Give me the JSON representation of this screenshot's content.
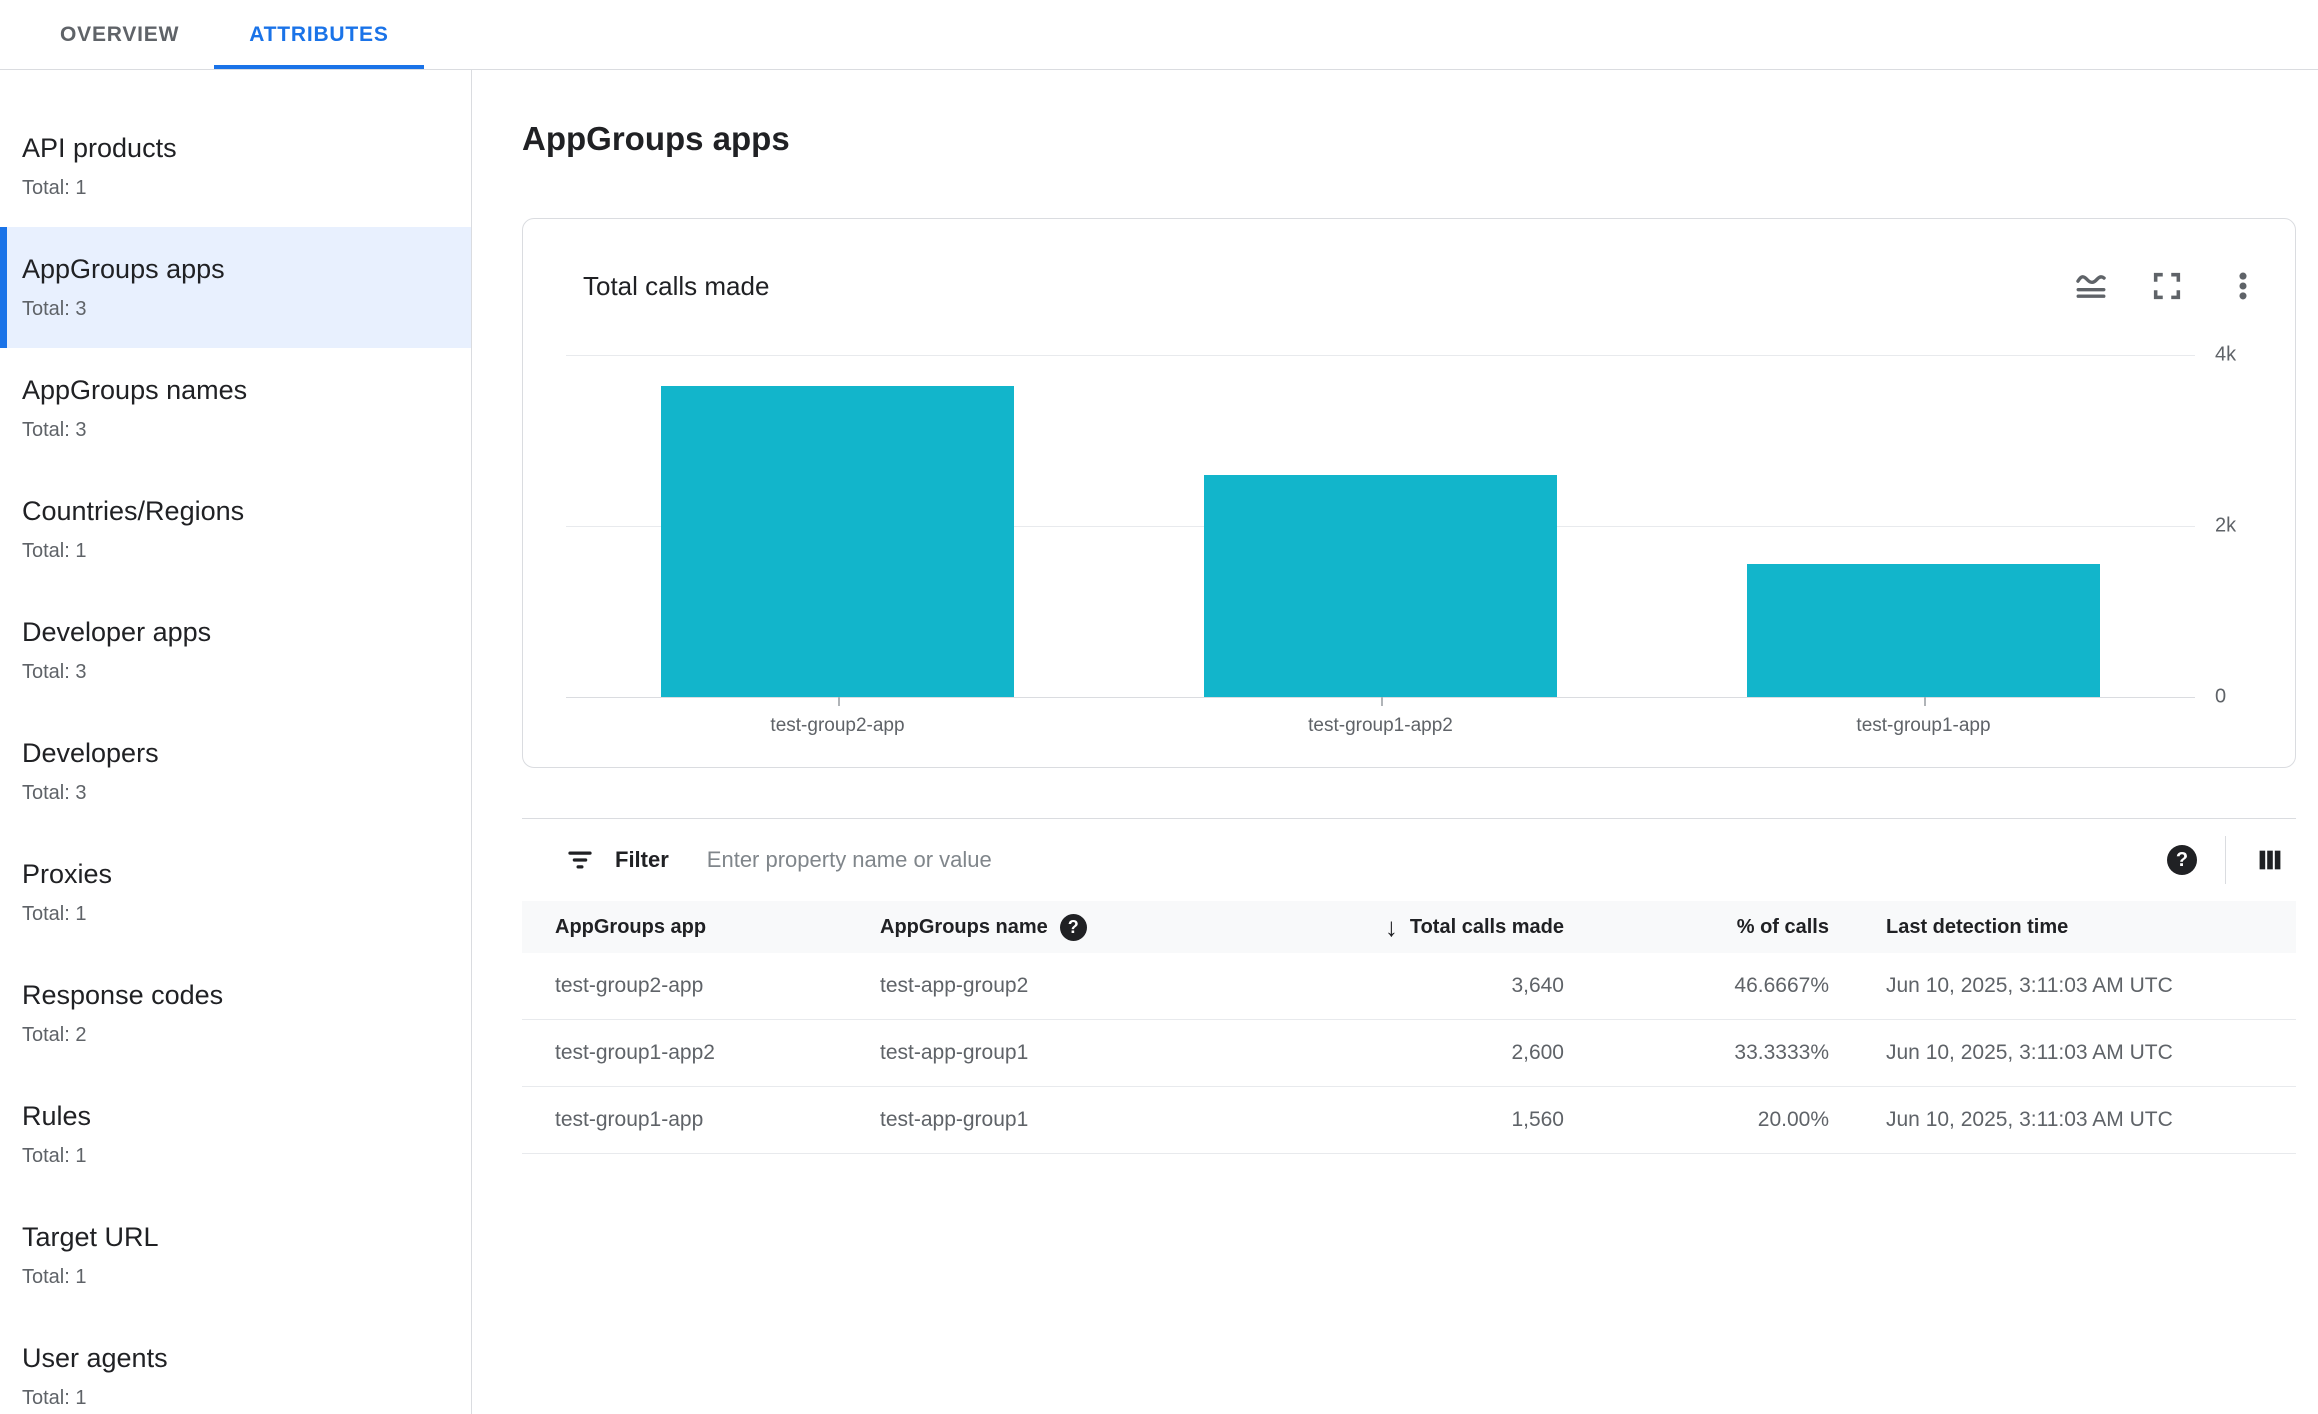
{
  "tabs": [
    {
      "label": "OVERVIEW",
      "active": false
    },
    {
      "label": "ATTRIBUTES",
      "active": true
    }
  ],
  "sidebar": {
    "items": [
      {
        "title": "API products",
        "total": "Total: 1",
        "selected": false
      },
      {
        "title": "AppGroups apps",
        "total": "Total: 3",
        "selected": true
      },
      {
        "title": "AppGroups names",
        "total": "Total: 3",
        "selected": false
      },
      {
        "title": "Countries/Regions",
        "total": "Total: 1",
        "selected": false
      },
      {
        "title": "Developer apps",
        "total": "Total: 3",
        "selected": false
      },
      {
        "title": "Developers",
        "total": "Total: 3",
        "selected": false
      },
      {
        "title": "Proxies",
        "total": "Total: 1",
        "selected": false
      },
      {
        "title": "Response codes",
        "total": "Total: 2",
        "selected": false
      },
      {
        "title": "Rules",
        "total": "Total: 1",
        "selected": false
      },
      {
        "title": "Target URL",
        "total": "Total: 1",
        "selected": false
      },
      {
        "title": "User agents",
        "total": "Total: 1",
        "selected": false
      }
    ]
  },
  "page": {
    "title": "AppGroups apps"
  },
  "chart_card": {
    "title": "Total calls made",
    "icons": [
      "area-chart",
      "fullscreen",
      "more-vert"
    ]
  },
  "chart_data": {
    "type": "bar",
    "title": "Total calls made",
    "categories": [
      "test-group2-app",
      "test-group1-app2",
      "test-group1-app"
    ],
    "values": [
      3640,
      2600,
      1560
    ],
    "ylim": [
      0,
      4000
    ],
    "yticks": [
      {
        "label": "4k",
        "value": 4000
      },
      {
        "label": "2k",
        "value": 2000
      },
      {
        "label": "0",
        "value": 0
      }
    ],
    "bar_color": "#12b5cb",
    "grid": "horizontal",
    "legend": "none",
    "value_axis_side": "right"
  },
  "filter": {
    "label": "Filter",
    "placeholder": "Enter property name or value"
  },
  "table": {
    "columns": [
      {
        "label": "AppGroups app",
        "align": "left"
      },
      {
        "label": "AppGroups name",
        "align": "left",
        "help": true
      },
      {
        "label": "Total calls made",
        "align": "right",
        "sort": "desc"
      },
      {
        "label": "% of calls",
        "align": "right"
      },
      {
        "label": "Last detection time",
        "align": "left"
      }
    ],
    "rows": [
      [
        "test-group2-app",
        "test-app-group2",
        "3,640",
        "46.6667%",
        "Jun 10, 2025, 3:11:03 AM UTC"
      ],
      [
        "test-group1-app2",
        "test-app-group1",
        "2,600",
        "33.3333%",
        "Jun 10, 2025, 3:11:03 AM UTC"
      ],
      [
        "test-group1-app",
        "test-app-group1",
        "1,560",
        "20.00%",
        "Jun 10, 2025, 3:11:03 AM UTC"
      ]
    ]
  }
}
